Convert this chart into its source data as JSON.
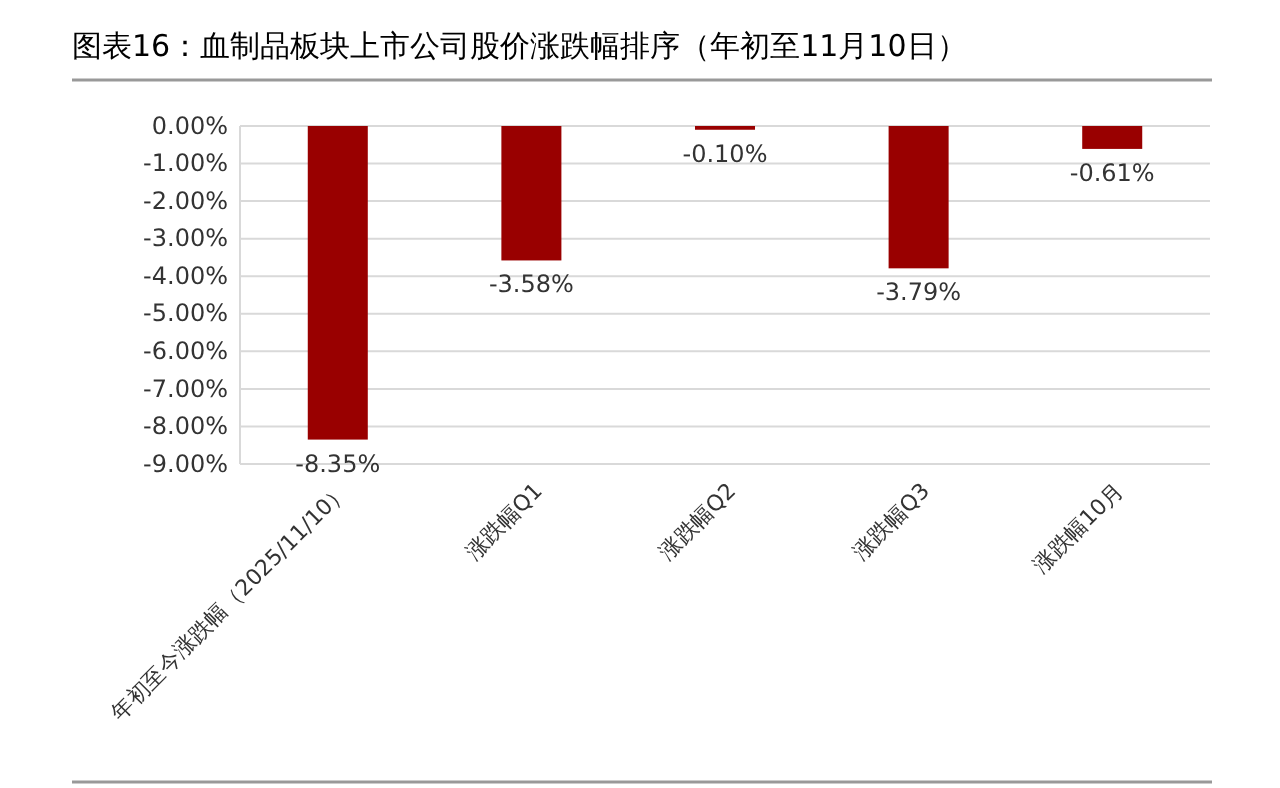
{
  "chart_data": {
    "type": "bar",
    "title": "图表16：血制品板块上市公司股价涨跌幅排序（年初至11月10日）",
    "categories": [
      "年初至今涨跌幅（2025/11/10）",
      "涨跌幅Q1",
      "涨跌幅Q2",
      "涨跌幅Q3",
      "涨跌幅10月"
    ],
    "values": [
      -8.35,
      -3.58,
      -0.1,
      -3.79,
      -0.61
    ],
    "value_labels": [
      "-8.35%",
      "-3.58%",
      "-0.10%",
      "-3.79%",
      "-0.61%"
    ],
    "color": "#990000",
    "ylim": [
      -9,
      0
    ],
    "yticks": [
      {
        "value": 0,
        "label": "0.00%"
      },
      {
        "value": -1,
        "label": "-1.00%"
      },
      {
        "value": -2,
        "label": "-2.00%"
      },
      {
        "value": -3,
        "label": "-3.00%"
      },
      {
        "value": -4,
        "label": "-4.00%"
      },
      {
        "value": -5,
        "label": "-5.00%"
      },
      {
        "value": -6,
        "label": "-6.00%"
      },
      {
        "value": -7,
        "label": "-7.00%"
      },
      {
        "value": -8,
        "label": "-8.00%"
      },
      {
        "value": -9,
        "label": "-9.00%"
      }
    ],
    "grid": "y"
  }
}
